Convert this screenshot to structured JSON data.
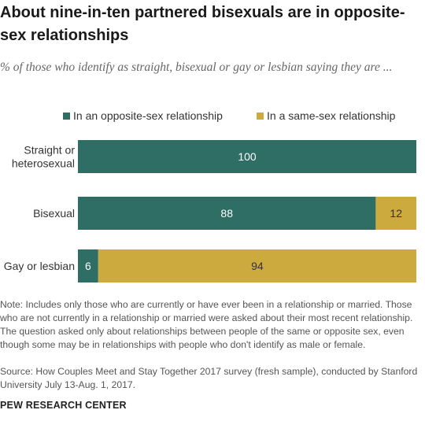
{
  "header": {
    "title": "About nine-in-ten partnered bisexuals are in opposite-sex relationships",
    "subtitle": "% of those who identify as straight, bisexual or gay or lesbian saying they are ..."
  },
  "colors": {
    "opposite_sex": "#2e6e65",
    "same_sex": "#ccaa3d",
    "label_light": "#ffffff",
    "label_dark": "#333333"
  },
  "chart_data": {
    "type": "bar",
    "orientation": "horizontal",
    "stacked": true,
    "categories": [
      "Straight or heterosexual",
      "Bisexual",
      "Gay or lesbian"
    ],
    "category_lines": [
      [
        "Straight or",
        "heterosexual"
      ],
      [
        "Bisexual"
      ],
      [
        "Gay or lesbian"
      ]
    ],
    "series": [
      {
        "name": "In an opposite-sex relationship",
        "values": [
          100,
          88,
          6
        ]
      },
      {
        "name": "In a same-sex relationship",
        "values": [
          0,
          12,
          94
        ]
      }
    ],
    "xlim": [
      0,
      100
    ],
    "legend_position": "top",
    "grid": false
  },
  "footer": {
    "note": "Note: Includes only those who are currently or have ever been in a relationship or married. Those who are not currently in a relationship or married were asked about their most recent relationship. The question asked only about relationships between people of the same or opposite sex, even though some may be in relationships with people who don't identify as male or female.",
    "source": "Source: How Couples Meet and Stay Together 2017 survey (fresh sample), conducted by Stanford University July 13-Aug. 1, 2017.",
    "brand": "PEW RESEARCH CENTER"
  }
}
